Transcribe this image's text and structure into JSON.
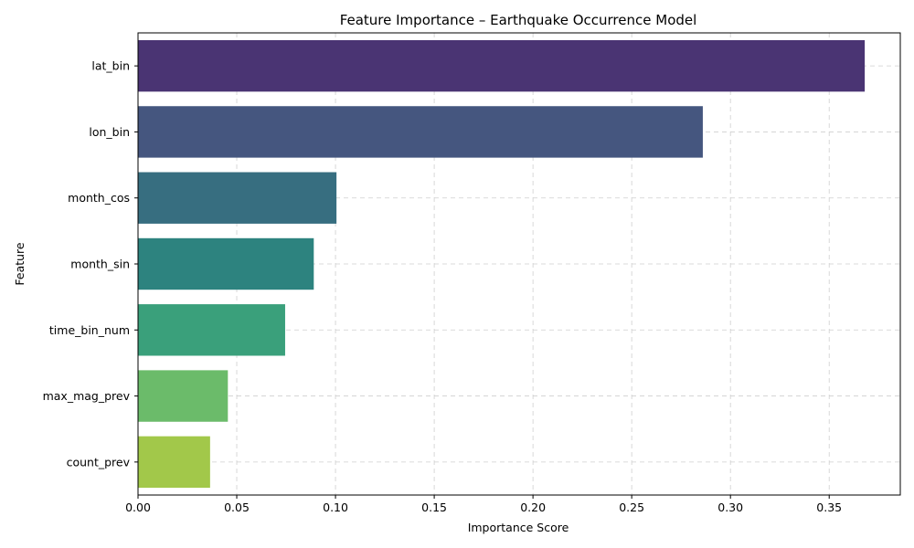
{
  "chart_data": {
    "type": "bar",
    "orientation": "horizontal",
    "title": "Feature Importance – Earthquake Occurrence Model",
    "xlabel": "Importance Score",
    "ylabel": "Feature",
    "categories": [
      "lat_bin",
      "lon_bin",
      "month_cos",
      "month_sin",
      "time_bin_num",
      "max_mag_prev",
      "count_prev"
    ],
    "values": [
      0.368,
      0.286,
      0.1005,
      0.089,
      0.0745,
      0.0455,
      0.0365
    ],
    "colors": [
      "#4a3473",
      "#45567f",
      "#376e80",
      "#2d837f",
      "#3aa07b",
      "#6bbb6a",
      "#a2c84a"
    ],
    "xlim": [
      0,
      0.386
    ],
    "xticks": [
      0.0,
      0.05,
      0.1,
      0.15,
      0.2,
      0.25,
      0.3,
      0.35
    ],
    "xtick_labels": [
      "0.00",
      "0.05",
      "0.10",
      "0.15",
      "0.20",
      "0.25",
      "0.30",
      "0.35"
    ],
    "grid": true
  }
}
